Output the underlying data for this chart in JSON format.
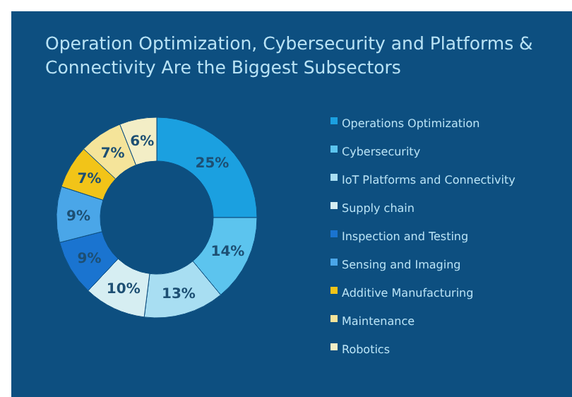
{
  "chart_data": {
    "type": "donut",
    "title": "Operation Optimization, Cybersecurity and Platforms & Connectivity Are the Biggest Subsectors",
    "categories": [
      "Operations Optimization",
      "Cybersecurity",
      "IoT Platforms and Connectivity",
      "Supply chain",
      "Inspection and Testing",
      "Sensing and Imaging",
      "Additive Manufacturing",
      "Maintenance",
      "Robotics"
    ],
    "values": [
      25,
      14,
      13,
      10,
      9,
      9,
      7,
      7,
      6
    ],
    "colors": [
      "#1ba0e0",
      "#5cc4ee",
      "#a8def2",
      "#d6eef2",
      "#1a74d0",
      "#4aa6e8",
      "#f2c418",
      "#f5e49a",
      "#f3eec6"
    ],
    "value_labels": [
      "25%",
      "14%",
      "13%",
      "10%",
      "9%",
      "9%",
      "7%",
      "7%",
      "6%"
    ],
    "legend": "right"
  }
}
